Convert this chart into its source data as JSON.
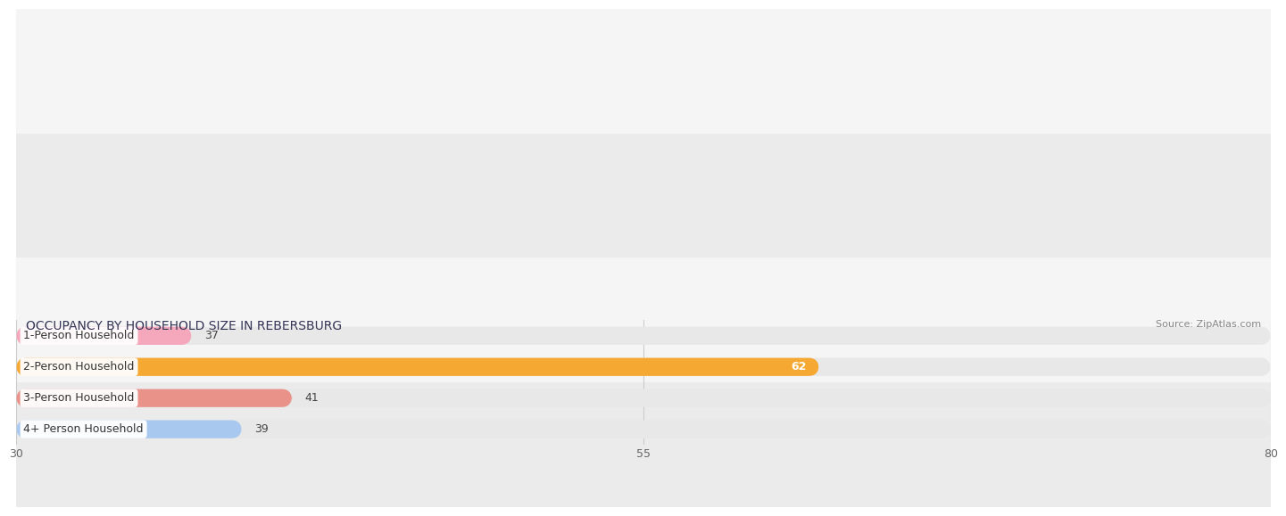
{
  "title": "OCCUPANCY BY HOUSEHOLD SIZE IN REBERSBURG",
  "source": "Source: ZipAtlas.com",
  "categories": [
    "1-Person Household",
    "2-Person Household",
    "3-Person Household",
    "4+ Person Household"
  ],
  "values": [
    37,
    62,
    41,
    39
  ],
  "bar_colors": [
    "#f5a8bc",
    "#f5a832",
    "#e8928a",
    "#a8c8f0"
  ],
  "xlim_data": [
    0,
    80
  ],
  "xlim_display": [
    30,
    80
  ],
  "xticks": [
    30,
    55,
    80
  ],
  "title_fontsize": 10,
  "source_fontsize": 8,
  "label_fontsize": 9,
  "tick_fontsize": 9,
  "background_color": "#ffffff",
  "bar_bg_color": "#e8e8e8",
  "row_bg_colors": [
    "#f5f5f5",
    "#ebebeb"
  ],
  "value_label_62_color": "#ffffff",
  "value_label_other_color": "#444444"
}
